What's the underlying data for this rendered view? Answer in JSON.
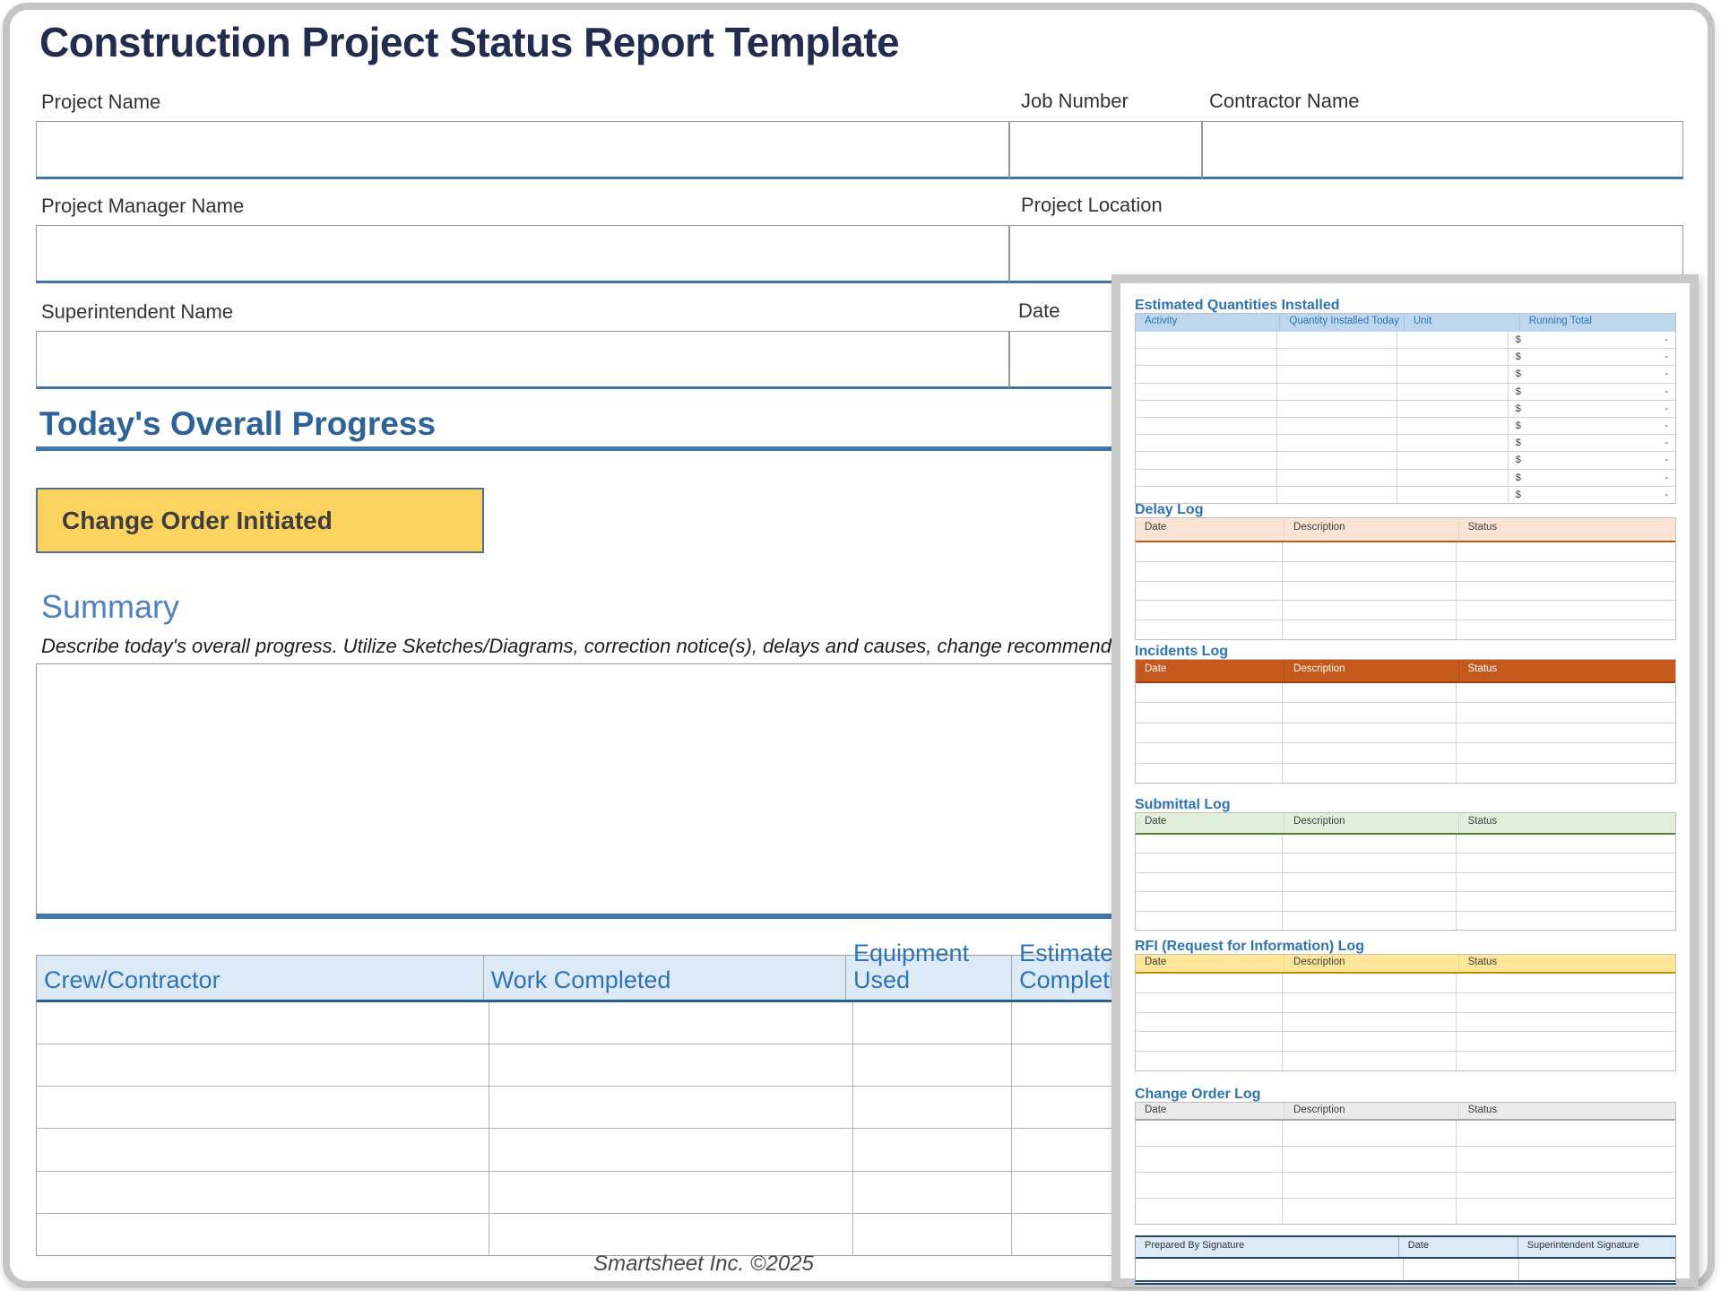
{
  "page": {
    "title": "Construction Project Status Report Template",
    "footer": "Smartsheet Inc. ©2025"
  },
  "form": {
    "project_name": {
      "label": "Project Name",
      "value": ""
    },
    "job_number": {
      "label": "Job Number",
      "value": ""
    },
    "contractor_name": {
      "label": "Contractor Name",
      "value": ""
    },
    "project_manager_name": {
      "label": "Project Manager Name",
      "value": ""
    },
    "project_location": {
      "label": "Project Location",
      "value": ""
    },
    "superintendent_name": {
      "label": "Superintendent Name",
      "value": ""
    },
    "date": {
      "label": "Date",
      "value": ""
    }
  },
  "progress": {
    "heading": "Today's Overall Progress",
    "change_order_label": "Change Order Initiated",
    "summary_heading": "Summary",
    "summary_instructions": "Describe today's overall progress.  Utilize Sketches/Diagrams, correction notice(s), delays and causes, change recommendations, etc.",
    "summary_value": ""
  },
  "crew_table": {
    "headers": [
      "Crew/Contractor",
      "Work Completed",
      "Equipment Used",
      "Estimated Completion"
    ],
    "rows": 6
  },
  "panel": {
    "quantities": {
      "title": "Estimated Quantities Installed",
      "headers": [
        "Activity",
        "Quantity Installed Today",
        "Unit",
        "Running Total"
      ],
      "rows": 10,
      "currency_symbol": "$",
      "empty_value": "-"
    },
    "delay_log": {
      "title": "Delay Log",
      "headers": [
        "Date",
        "Description",
        "Status"
      ],
      "rows": 5
    },
    "incidents_log": {
      "title": "Incidents Log",
      "headers": [
        "Date",
        "Description",
        "Status"
      ],
      "rows": 5
    },
    "submittal_log": {
      "title": "Submittal Log",
      "headers": [
        "Date",
        "Description",
        "Status"
      ],
      "rows": 5
    },
    "rfi_log": {
      "title": "RFI (Request for Information) Log",
      "headers": [
        "Date",
        "Description",
        "Status"
      ],
      "rows": 5
    },
    "change_order_log": {
      "title": "Change Order Log",
      "headers": [
        "Date",
        "Description",
        "Status"
      ],
      "rows": 4
    },
    "signature": {
      "headers": [
        "Prepared By Signature",
        "Date",
        "Superintendent Signature"
      ]
    }
  },
  "colors": {
    "title_navy": "#222c4e",
    "section_blue": "#2e6399",
    "summary_blue": "#4d82bf",
    "rule_blue": "#4377a9",
    "field_underline_blue": "#4176a8",
    "highlight_yellow": "#fbd35e",
    "crew_header_bg": "#dce9f6",
    "table_header_text_blue": "#2e74b5",
    "eqi_header_bg": "#bdd7ee",
    "delay_header_bg": "#fbe3d5",
    "delay_accent": "#c55a11",
    "incidents_header_bg": "#c5581a",
    "incidents_accent": "#9e3f0d",
    "submittal_header_bg": "#e2efda",
    "submittal_accent": "#538135",
    "rfi_header_bg": "#ffe699",
    "rfi_accent": "#bf8f00",
    "change_order_header_bg": "#eaeaea",
    "change_order_accent": "#a6a6a6",
    "signature_header_bg": "#dce9f6",
    "signature_accent": "#24456e"
  }
}
